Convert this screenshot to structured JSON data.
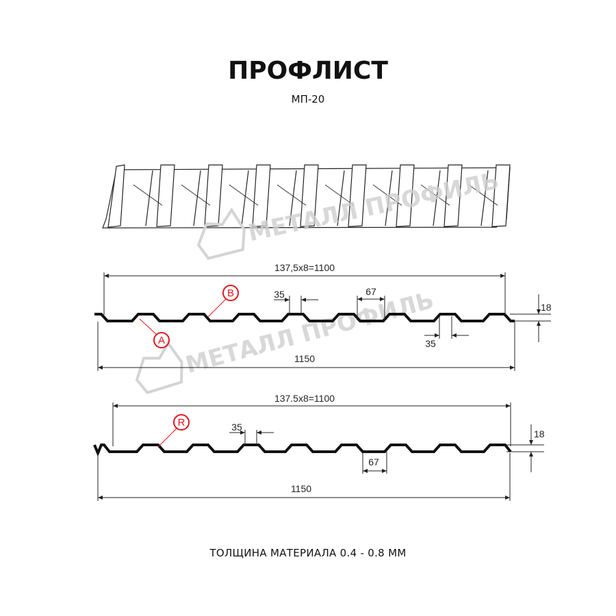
{
  "header": {
    "title": "ПРОФЛИСТ",
    "subtitle": "МП-20"
  },
  "watermark": {
    "text": "МЕТАЛЛ ПРОФИЛЬ",
    "color": "#cfcfcf"
  },
  "profile_1": {
    "pitch_label": "137,5x8=1100",
    "width_label": "1150",
    "height_label": "18",
    "crest_label": "35",
    "valley_label": "67",
    "bottom_label": "35",
    "marker_a": "A",
    "marker_b": "B"
  },
  "profile_2": {
    "pitch_label": "137.5x8=1100",
    "width_label": "1150",
    "height_label": "18",
    "crest_label": "35",
    "valley_label": "67",
    "marker_r": "R"
  },
  "footer": {
    "thickness": "ТОЛЩИНА МАТЕРИАЛА 0.4 - 0.8 ММ"
  },
  "colors": {
    "profile": "#111111",
    "marker": "#e8141a",
    "dimension": "#222222"
  }
}
